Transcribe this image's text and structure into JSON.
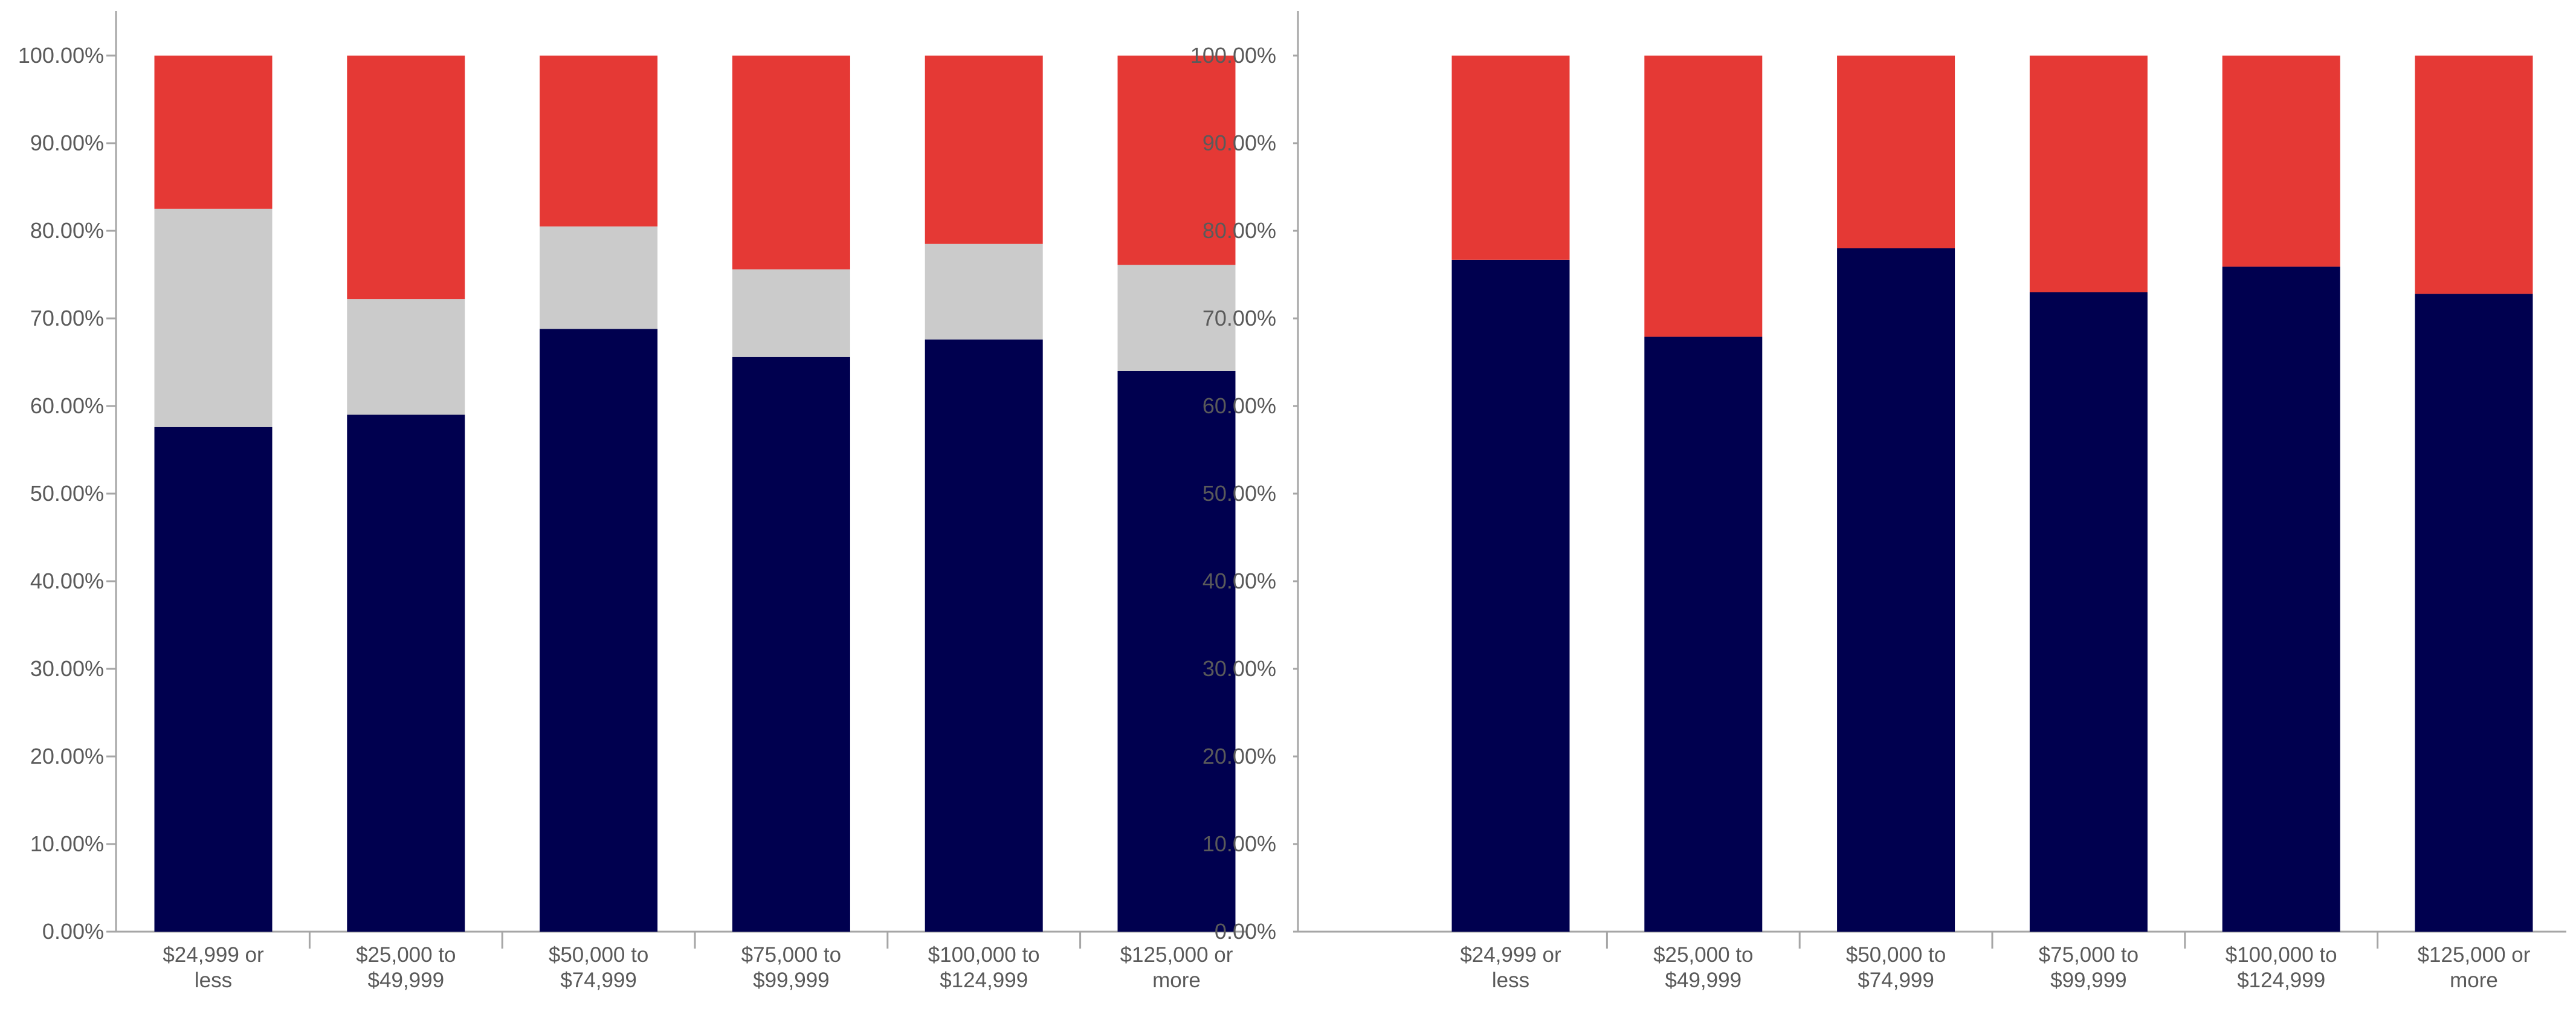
{
  "colors": {
    "series1": "#00004f",
    "series2": "#cbcbcb",
    "series3": "#e53935",
    "axis": "#a6a6a6",
    "text": "#5a5a5a"
  },
  "chart_data": [
    {
      "type": "bar",
      "stacked": true,
      "categories": [
        [
          "$24,999 or",
          "less"
        ],
        [
          "$25,000 to",
          "$49,999"
        ],
        [
          "$50,000 to",
          "$74,999"
        ],
        [
          "$75,000 to",
          "$99,999"
        ],
        [
          "$100,000 to",
          "$124,999"
        ],
        [
          "$125,000 or",
          "more"
        ]
      ],
      "series": [
        {
          "name": "series-1",
          "color": "#00004f",
          "values": [
            57.6,
            59.0,
            68.8,
            65.6,
            67.6,
            64.0
          ]
        },
        {
          "name": "series-2",
          "color": "#cbcbcb",
          "values": [
            24.9,
            13.2,
            11.7,
            10.0,
            10.9,
            12.1
          ]
        },
        {
          "name": "series-3",
          "color": "#e53935",
          "values": [
            17.5,
            27.8,
            19.5,
            24.4,
            21.5,
            23.9
          ]
        }
      ],
      "ylim": [
        0,
        100
      ],
      "yticks": [
        "0.00%",
        "10.00%",
        "20.00%",
        "30.00%",
        "40.00%",
        "50.00%",
        "60.00%",
        "70.00%",
        "80.00%",
        "90.00%",
        "100.00%"
      ],
      "title": "",
      "xlabel": "",
      "ylabel": ""
    },
    {
      "type": "bar",
      "stacked": true,
      "categories": [
        [
          "$24,999 or",
          "less"
        ],
        [
          "$25,000 to",
          "$49,999"
        ],
        [
          "$50,000 to",
          "$74,999"
        ],
        [
          "$75,000 to",
          "$99,999"
        ],
        [
          "$100,000 to",
          "$124,999"
        ],
        [
          "$125,000 or",
          "more"
        ]
      ],
      "series": [
        {
          "name": "series-1",
          "color": "#00004f",
          "values": [
            76.7,
            67.9,
            78.0,
            73.0,
            75.9,
            72.8
          ]
        },
        {
          "name": "series-3",
          "color": "#e53935",
          "values": [
            23.3,
            32.1,
            22.0,
            27.0,
            24.1,
            27.2
          ]
        }
      ],
      "ylim": [
        0,
        100
      ],
      "yticks": [
        "0.00%",
        "10.00%",
        "20.00%",
        "30.00%",
        "40.00%",
        "50.00%",
        "60.00%",
        "70.00%",
        "80.00%",
        "90.00%",
        "100.00%"
      ],
      "title": "",
      "xlabel": "",
      "ylabel": ""
    }
  ]
}
